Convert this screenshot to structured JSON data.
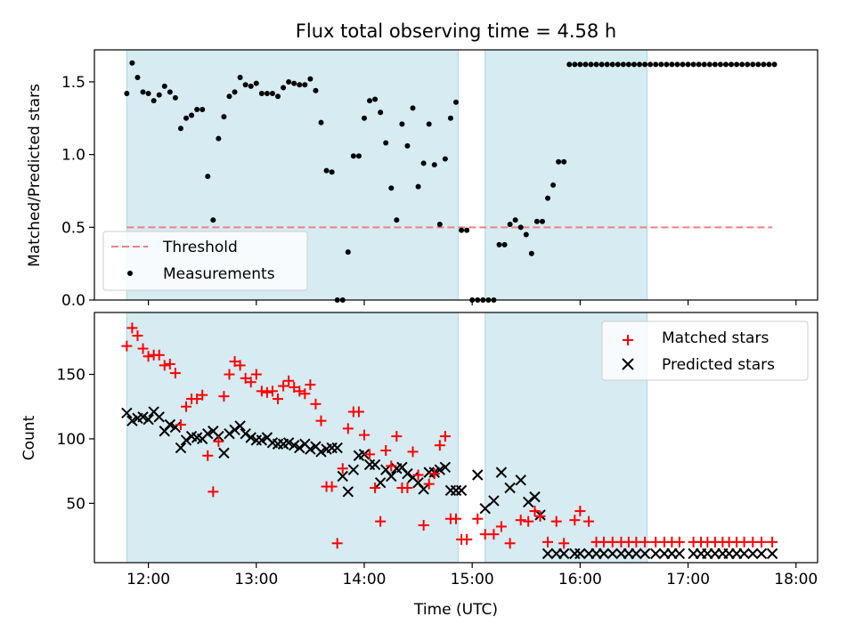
{
  "chart_data": [
    {
      "type": "scatter",
      "title": "Flux total observing time = 4.58 h",
      "ylabel": "Matched/Predicted stars",
      "xlim": [
        11.5,
        18.2
      ],
      "ylim": [
        0,
        1.72
      ],
      "yticks": [
        0.0,
        0.5,
        1.0,
        1.5
      ],
      "ytick_labels": [
        "0.0",
        "0.5",
        "1.0",
        "1.5"
      ],
      "shaded_intervals": [
        [
          11.8,
          14.87
        ],
        [
          15.12,
          16.62
        ]
      ],
      "shade_color": "#add8e6",
      "threshold": {
        "name": "Threshold",
        "y": 0.5,
        "x_range": [
          11.8,
          17.78
        ],
        "color": "#f08080",
        "style": "dashed"
      },
      "legend_position": "lower-left",
      "series": [
        {
          "name": "Measurements",
          "marker": "dot",
          "color": "#000000",
          "x": [
            11.8,
            11.85,
            11.9,
            11.95,
            12.0,
            12.05,
            12.1,
            12.15,
            12.2,
            12.25,
            12.3,
            12.35,
            12.4,
            12.45,
            12.5,
            12.55,
            12.6,
            12.65,
            12.7,
            12.75,
            12.8,
            12.85,
            12.9,
            12.95,
            13.0,
            13.05,
            13.1,
            13.15,
            13.2,
            13.25,
            13.3,
            13.35,
            13.4,
            13.45,
            13.5,
            13.55,
            13.6,
            13.65,
            13.7,
            13.75,
            13.8,
            13.85,
            13.9,
            13.95,
            14.0,
            14.05,
            14.1,
            14.15,
            14.2,
            14.25,
            14.3,
            14.35,
            14.4,
            14.45,
            14.5,
            14.55,
            14.6,
            14.65,
            14.7,
            14.75,
            14.8,
            14.85,
            14.9,
            14.95,
            15.0,
            15.05,
            15.1,
            15.15,
            15.2,
            15.25,
            15.3,
            15.35,
            15.4,
            15.45,
            15.5,
            15.55,
            15.6,
            15.65,
            15.7,
            15.75,
            15.8,
            15.85,
            15.9,
            15.95,
            16.0,
            16.05,
            16.1,
            16.15,
            16.2,
            16.25,
            16.3,
            16.35,
            16.4,
            16.45,
            16.5,
            16.55,
            16.6,
            16.65,
            16.7,
            16.75,
            16.8,
            16.85,
            16.9,
            16.95,
            17.0,
            17.05,
            17.1,
            17.15,
            17.2,
            17.25,
            17.3,
            17.35,
            17.4,
            17.45,
            17.5,
            17.55,
            17.6,
            17.65,
            17.7,
            17.75,
            17.8
          ],
          "y": [
            1.42,
            1.63,
            1.53,
            1.43,
            1.42,
            1.37,
            1.41,
            1.47,
            1.43,
            1.39,
            1.18,
            1.25,
            1.27,
            1.31,
            1.31,
            0.85,
            0.55,
            1.11,
            1.26,
            1.4,
            1.43,
            1.53,
            1.48,
            1.47,
            1.49,
            1.42,
            1.42,
            1.42,
            1.4,
            1.46,
            1.5,
            1.49,
            1.48,
            1.48,
            1.52,
            1.44,
            1.22,
            0.89,
            0.88,
            0.0,
            0.0,
            0.33,
            0.99,
            0.99,
            1.25,
            1.37,
            1.38,
            1.29,
            1.08,
            0.77,
            0.55,
            1.21,
            1.06,
            1.32,
            0.78,
            0.94,
            1.21,
            0.93,
            0.52,
            0.97,
            1.25,
            1.36,
            0.48,
            0.48,
            0.0,
            0.0,
            0.0,
            0.0,
            0.0,
            0.38,
            0.38,
            0.52,
            0.55,
            0.5,
            0.45,
            0.32,
            0.54,
            0.54,
            0.7,
            0.79,
            0.95,
            0.95,
            1.62,
            1.62,
            1.62,
            1.62,
            1.62,
            1.62,
            1.62,
            1.62,
            1.62,
            1.62,
            1.62,
            1.62,
            1.62,
            1.62,
            1.62,
            1.62,
            1.62,
            1.62,
            1.62,
            1.62,
            1.62,
            1.62,
            1.62,
            1.62,
            1.62,
            1.62,
            1.62,
            1.62,
            1.62,
            1.62,
            1.62,
            1.62,
            1.62,
            1.62,
            1.62,
            1.62,
            1.62,
            1.62,
            1.62
          ]
        }
      ]
    },
    {
      "type": "scatter",
      "xlabel": "Time (UTC)",
      "ylabel": "Count",
      "xlim": [
        11.5,
        18.2
      ],
      "ylim": [
        4,
        198
      ],
      "xticks": [
        12,
        13,
        14,
        15,
        16,
        17,
        18
      ],
      "xtick_labels": [
        "12:00",
        "13:00",
        "14:00",
        "15:00",
        "16:00",
        "17:00",
        "18:00"
      ],
      "yticks": [
        50,
        100,
        150
      ],
      "ytick_labels": [
        "50",
        "100",
        "150"
      ],
      "shaded_intervals": [
        [
          11.8,
          14.87
        ],
        [
          15.12,
          16.62
        ]
      ],
      "shade_color": "#add8e6",
      "legend_position": "upper-right",
      "series": [
        {
          "name": "Matched stars",
          "marker": "plus",
          "color": "#ff0000",
          "x": [
            11.8,
            11.85,
            11.9,
            11.95,
            12.0,
            12.05,
            12.1,
            12.15,
            12.2,
            12.25,
            12.3,
            12.35,
            12.4,
            12.45,
            12.5,
            12.55,
            12.6,
            12.65,
            12.7,
            12.75,
            12.8,
            12.85,
            12.9,
            12.95,
            13.0,
            13.05,
            13.1,
            13.15,
            13.2,
            13.25,
            13.3,
            13.35,
            13.4,
            13.45,
            13.5,
            13.55,
            13.6,
            13.65,
            13.7,
            13.75,
            13.8,
            13.85,
            13.9,
            13.95,
            14.0,
            14.05,
            14.1,
            14.15,
            14.2,
            14.25,
            14.3,
            14.35,
            14.4,
            14.45,
            14.5,
            14.55,
            14.6,
            14.65,
            14.7,
            14.75,
            14.8,
            14.85,
            14.9,
            14.95,
            15.05,
            15.12,
            15.2,
            15.27,
            15.35,
            15.45,
            15.52,
            15.58,
            15.63,
            15.7,
            15.78,
            15.85,
            15.95,
            16.0,
            16.08,
            16.15,
            16.22,
            16.3,
            16.38,
            16.45,
            16.52,
            16.6,
            16.7,
            16.78,
            16.85,
            16.92,
            17.05,
            17.12,
            17.18,
            17.25,
            17.32,
            17.38,
            17.45,
            17.52,
            17.6,
            17.68,
            17.78
          ],
          "y": [
            172,
            186,
            180,
            170,
            164,
            165,
            165,
            157,
            158,
            151,
            111,
            125,
            131,
            131,
            134,
            87,
            59,
            98,
            133,
            150,
            160,
            157,
            147,
            144,
            150,
            137,
            136,
            137,
            131,
            141,
            145,
            140,
            137,
            135,
            142,
            127,
            114,
            63,
            63,
            19,
            77,
            108,
            121,
            121,
            103,
            88,
            62,
            36,
            91,
            79,
            102,
            62,
            62,
            90,
            72,
            33,
            65,
            73,
            95,
            102,
            38,
            38,
            22,
            22,
            38,
            26,
            26,
            32,
            19,
            37,
            36,
            44,
            40,
            20,
            36,
            19,
            37,
            44,
            36,
            20,
            20,
            20,
            20,
            20,
            20,
            20,
            20,
            20,
            20,
            20,
            20,
            20,
            20,
            20,
            20,
            20,
            20,
            20,
            20,
            20,
            20
          ]
        },
        {
          "name": "Predicted stars",
          "marker": "x",
          "color": "#000000",
          "x": [
            11.8,
            11.85,
            11.9,
            11.95,
            12.0,
            12.05,
            12.1,
            12.15,
            12.2,
            12.25,
            12.3,
            12.35,
            12.4,
            12.45,
            12.5,
            12.55,
            12.6,
            12.65,
            12.7,
            12.75,
            12.8,
            12.85,
            12.9,
            12.95,
            13.0,
            13.05,
            13.1,
            13.15,
            13.2,
            13.25,
            13.3,
            13.35,
            13.4,
            13.45,
            13.5,
            13.55,
            13.6,
            13.65,
            13.7,
            13.75,
            13.8,
            13.85,
            13.9,
            13.95,
            14.0,
            14.05,
            14.1,
            14.15,
            14.2,
            14.25,
            14.3,
            14.35,
            14.4,
            14.45,
            14.5,
            14.55,
            14.6,
            14.65,
            14.7,
            14.75,
            14.8,
            14.85,
            14.9,
            15.05,
            15.12,
            15.2,
            15.27,
            15.35,
            15.45,
            15.52,
            15.58,
            15.63,
            15.7,
            15.78,
            15.85,
            15.95,
            16.0,
            16.08,
            16.15,
            16.22,
            16.3,
            16.38,
            16.45,
            16.52,
            16.6,
            16.7,
            16.78,
            16.85,
            16.92,
            17.05,
            17.12,
            17.18,
            17.25,
            17.32,
            17.38,
            17.45,
            17.52,
            17.6,
            17.68,
            17.78
          ],
          "y": [
            120,
            114,
            116,
            117,
            115,
            121,
            117,
            106,
            111,
            109,
            93,
            99,
            102,
            101,
            100,
            104,
            106,
            102,
            89,
            104,
            107,
            110,
            104,
            101,
            99,
            99,
            101,
            97,
            96,
            96,
            97,
            95,
            93,
            96,
            92,
            94,
            90,
            92,
            93,
            93,
            71,
            59,
            76,
            87,
            88,
            80,
            80,
            66,
            76,
            71,
            77,
            78,
            73,
            70,
            66,
            61,
            74,
            74,
            76,
            78,
            60,
            60,
            60,
            72,
            46,
            52,
            74,
            62,
            68,
            51,
            55,
            41,
            11,
            11,
            11,
            11,
            11,
            11,
            11,
            11,
            11,
            11,
            11,
            11,
            11,
            11,
            11,
            11,
            11,
            11,
            11,
            11,
            11,
            11,
            11,
            11,
            11,
            11,
            11,
            11
          ]
        }
      ]
    }
  ]
}
